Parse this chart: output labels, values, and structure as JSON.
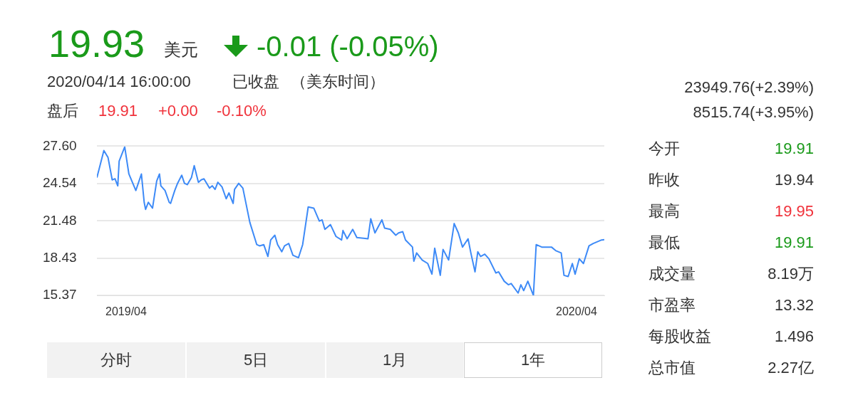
{
  "chart_data": {
    "type": "line",
    "color": "#3d8af7",
    "x": [
      "2019-04-15",
      "2019-04-20",
      "2019-04-23",
      "2019-04-26",
      "2019-04-28",
      "2019-04-30",
      "2019-05-01",
      "2019-05-05",
      "2019-05-08",
      "2019-05-13",
      "2019-05-17",
      "2019-05-19",
      "2019-05-20",
      "2019-05-22",
      "2019-05-25",
      "2019-05-28",
      "2019-05-30",
      "2019-05-31",
      "2019-06-03",
      "2019-06-06",
      "2019-06-07",
      "2019-06-10",
      "2019-06-12",
      "2019-06-15",
      "2019-06-17",
      "2019-06-19",
      "2019-06-22",
      "2019-06-24",
      "2019-06-27",
      "2019-06-29",
      "2019-07-01",
      "2019-07-05",
      "2019-07-07",
      "2019-07-09",
      "2019-07-11",
      "2019-07-14",
      "2019-07-17",
      "2019-07-19",
      "2019-07-22",
      "2019-07-23",
      "2019-07-26",
      "2019-07-29",
      "2019-08-03",
      "2019-08-08",
      "2019-08-10",
      "2019-08-13",
      "2019-08-16",
      "2019-08-18",
      "2019-08-21",
      "2019-08-23",
      "2019-08-26",
      "2019-08-28",
      "2019-08-31",
      "2019-09-03",
      "2019-09-07",
      "2019-09-10",
      "2019-09-14",
      "2019-09-18",
      "2019-09-22",
      "2019-09-24",
      "2019-09-26",
      "2019-09-30",
      "2019-10-04",
      "2019-10-08",
      "2019-10-09",
      "2019-10-12",
      "2019-10-16",
      "2019-10-19",
      "2019-10-27",
      "2019-10-29",
      "2019-11-01",
      "2019-11-06",
      "2019-11-08",
      "2019-11-12",
      "2019-11-16",
      "2019-11-18",
      "2019-11-21",
      "2019-11-23",
      "2019-11-28",
      "2019-11-29",
      "2019-12-01",
      "2019-12-05",
      "2019-12-09",
      "2019-12-12",
      "2019-12-14",
      "2019-12-18",
      "2019-12-20",
      "2019-12-24",
      "2019-12-28",
      "2019-12-31",
      "2020-01-03",
      "2020-01-07",
      "2020-01-09",
      "2020-01-12",
      "2020-01-14",
      "2020-01-16",
      "2020-01-19",
      "2020-01-22",
      "2020-01-27",
      "2020-01-29",
      "2020-02-02",
      "2020-02-05",
      "2020-02-07",
      "2020-02-12",
      "2020-02-14",
      "2020-02-16",
      "2020-02-19",
      "2020-02-23",
      "2020-02-25",
      "2020-02-29",
      "2020-03-07",
      "2020-03-10",
      "2020-03-14",
      "2020-03-16",
      "2020-03-19",
      "2020-03-22",
      "2020-03-24",
      "2020-03-27",
      "2020-03-30",
      "2020-04-03",
      "2020-04-06",
      "2020-04-12",
      "2020-04-14"
    ],
    "values": [
      25.03,
      27.25,
      26.67,
      24.84,
      24.93,
      24.35,
      26.38,
      27.54,
      25.32,
      23.97,
      25.32,
      23.0,
      22.42,
      23.0,
      22.52,
      24.74,
      25.32,
      24.35,
      23.97,
      23.0,
      22.91,
      23.97,
      24.55,
      25.22,
      24.55,
      24.45,
      25.03,
      26.0,
      24.64,
      24.84,
      24.93,
      24.16,
      24.35,
      24.06,
      24.64,
      24.26,
      23.29,
      23.77,
      22.91,
      24.06,
      24.55,
      24.16,
      21.36,
      19.53,
      19.43,
      19.53,
      18.56,
      19.91,
      20.3,
      19.53,
      18.95,
      19.43,
      19.62,
      18.66,
      18.46,
      19.53,
      22.62,
      22.52,
      21.46,
      21.56,
      20.78,
      21.17,
      20.2,
      19.91,
      20.69,
      20.01,
      20.78,
      20.11,
      20.01,
      21.65,
      20.49,
      21.56,
      20.88,
      20.78,
      20.3,
      20.49,
      20.59,
      19.91,
      19.33,
      18.17,
      18.85,
      18.27,
      17.98,
      17.11,
      19.24,
      17.01,
      19.14,
      18.27,
      21.26,
      20.49,
      19.33,
      20.01,
      18.85,
      17.3,
      18.95,
      18.56,
      18.75,
      18.37,
      17.21,
      17.3,
      16.53,
      16.24,
      16.34,
      15.56,
      16.24,
      15.76,
      16.53,
      15.37,
      19.53,
      19.33,
      19.33,
      19.04,
      18.85,
      17.01,
      16.92,
      17.98,
      17.11,
      18.37,
      17.98,
      19.43,
      19.62,
      19.91,
      19.93
    ],
    "xlim": [
      "2019-04-15",
      "2020-04-14"
    ],
    "xticks": [
      {
        "value": "2019-05-06",
        "label": "2019/04"
      },
      {
        "value": "2020-03-25",
        "label": "2020/04"
      }
    ],
    "ylim": [
      15.37,
      27.6
    ],
    "yticks": [
      15.37,
      18.43,
      21.48,
      24.54,
      {
        "value": 27.6,
        "label": "27.60"
      }
    ],
    "grid": "y",
    "legend": false,
    "marker": "none",
    "line_style": "solid",
    "annotations": [
      "19.93",
      "美元",
      "-0.01 (-0.05%)",
      "2020/04/14 16:00:00",
      "已收盘",
      "（美东时间）",
      "盘后",
      "19.91",
      "+0.00",
      "-0.10%",
      "23949.76(+2.39%)",
      "8515.74(+3.95%)",
      "今开",
      "19.91",
      "昨收",
      "19.94",
      "最高",
      "19.95",
      "最低",
      "19.91",
      "成交量",
      "8.19万",
      "市盈率",
      "13.32",
      "每股收益",
      "1.496",
      "总市值",
      "2.27亿",
      "分时",
      "5日",
      "1月",
      "1年"
    ]
  }
}
